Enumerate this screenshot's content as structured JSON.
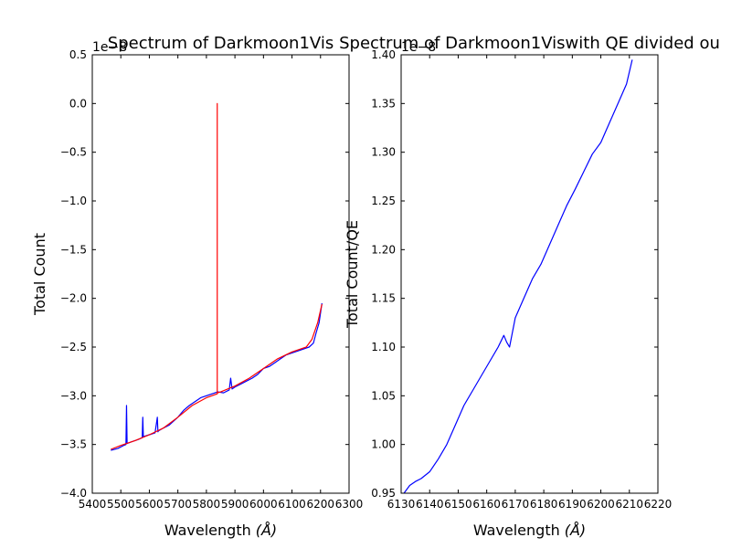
{
  "colors": {
    "data_line": "#0000ff",
    "fit_line": "#ff0000",
    "axes": "#000000"
  },
  "chart_data": [
    {
      "type": "line",
      "title": "Spectrum of Darkmoon1Vis",
      "xlabel": "Wavelength",
      "xlabel_unit": "(Å)",
      "ylabel": "Total Count",
      "y_offset_label": "1e−8",
      "xlim": [
        5400,
        6300
      ],
      "ylim": [
        -4.0,
        0.5
      ],
      "x_ticks": [
        5400,
        5500,
        5600,
        5700,
        5800,
        5900,
        6000,
        6100,
        6200,
        6300
      ],
      "y_ticks": [
        0.5,
        0.0,
        -0.5,
        -1.0,
        -1.5,
        -2.0,
        -2.5,
        -3.0,
        -3.5,
        -4.0
      ],
      "y_tick_labels": [
        "0.5",
        "0.0",
        "−0.5",
        "−1.0",
        "−1.5",
        "−2.0",
        "−2.5",
        "−3.0",
        "−3.5",
        "−4.0"
      ],
      "series": [
        {
          "color": "#0000ff",
          "x": [
            5465,
            5490,
            5510,
            5518,
            5520,
            5522,
            5540,
            5560,
            5575,
            5577,
            5579,
            5600,
            5620,
            5628,
            5630,
            5632,
            5650,
            5670,
            5700,
            5720,
            5740,
            5760,
            5780,
            5800,
            5820,
            5840,
            5860,
            5880,
            5885,
            5890,
            5900,
            5920,
            5940,
            5960,
            5980,
            6000,
            6020,
            6040,
            6060,
            6080,
            6100,
            6120,
            6140,
            6160,
            6175,
            6185,
            6195,
            6205
          ],
          "y": [
            -3.56,
            -3.54,
            -3.51,
            -3.5,
            -3.1,
            -3.49,
            -3.47,
            -3.45,
            -3.43,
            -3.22,
            -3.42,
            -3.4,
            -3.38,
            -3.22,
            -3.37,
            -3.36,
            -3.33,
            -3.3,
            -3.22,
            -3.15,
            -3.1,
            -3.06,
            -3.02,
            -3.0,
            -2.98,
            -2.96,
            -2.97,
            -2.94,
            -2.82,
            -2.93,
            -2.91,
            -2.88,
            -2.85,
            -2.82,
            -2.78,
            -2.72,
            -2.7,
            -2.66,
            -2.62,
            -2.58,
            -2.56,
            -2.54,
            -2.52,
            -2.5,
            -2.46,
            -2.35,
            -2.25,
            -2.05
          ]
        },
        {
          "color": "#ff0000",
          "x": [
            5465,
            5500,
            5550,
            5600,
            5650,
            5700,
            5750,
            5800,
            5838,
            5838,
            5838,
            5850,
            5900,
            5950,
            6000,
            6050,
            6100,
            6150,
            6170,
            6190,
            6205
          ],
          "y": [
            -3.55,
            -3.51,
            -3.46,
            -3.4,
            -3.33,
            -3.22,
            -3.1,
            -3.02,
            -2.98,
            0.0,
            -2.97,
            -2.96,
            -2.9,
            -2.82,
            -2.72,
            -2.62,
            -2.55,
            -2.5,
            -2.42,
            -2.25,
            -2.06
          ]
        }
      ]
    },
    {
      "type": "line",
      "title": "Spectrum of Darkmoon1Viswith QE divided ou",
      "xlabel": "Wavelength",
      "xlabel_unit": "(Å)",
      "ylabel": "Total Count/QE",
      "y_offset_label": "1e−8",
      "xlim": [
        6130,
        6220
      ],
      "ylim": [
        0.95,
        1.4
      ],
      "x_ticks": [
        6130,
        6140,
        6150,
        6160,
        6170,
        6180,
        6190,
        6200,
        6210,
        6220
      ],
      "y_ticks": [
        1.4,
        1.35,
        1.3,
        1.25,
        1.2,
        1.15,
        1.1,
        1.05,
        1.0,
        0.95
      ],
      "y_tick_labels": [
        "1.40",
        "1.35",
        "1.30",
        "1.25",
        "1.20",
        "1.15",
        "1.10",
        "1.05",
        "1.00",
        "0.95"
      ],
      "series": [
        {
          "color": "#0000ff",
          "x": [
            6131,
            6133,
            6135,
            6137,
            6140,
            6143,
            6146,
            6149,
            6152,
            6155,
            6158,
            6161,
            6164,
            6166,
            6167,
            6168,
            6170,
            6173,
            6176,
            6179,
            6182,
            6185,
            6188,
            6191,
            6194,
            6197,
            6200,
            6203,
            6206,
            6209,
            6211
          ],
          "y": [
            0.95,
            0.958,
            0.962,
            0.965,
            0.972,
            0.985,
            1.0,
            1.02,
            1.04,
            1.055,
            1.07,
            1.085,
            1.1,
            1.112,
            1.105,
            1.1,
            1.13,
            1.15,
            1.17,
            1.185,
            1.205,
            1.225,
            1.245,
            1.262,
            1.28,
            1.298,
            1.31,
            1.33,
            1.35,
            1.37,
            1.395
          ]
        }
      ]
    }
  ]
}
